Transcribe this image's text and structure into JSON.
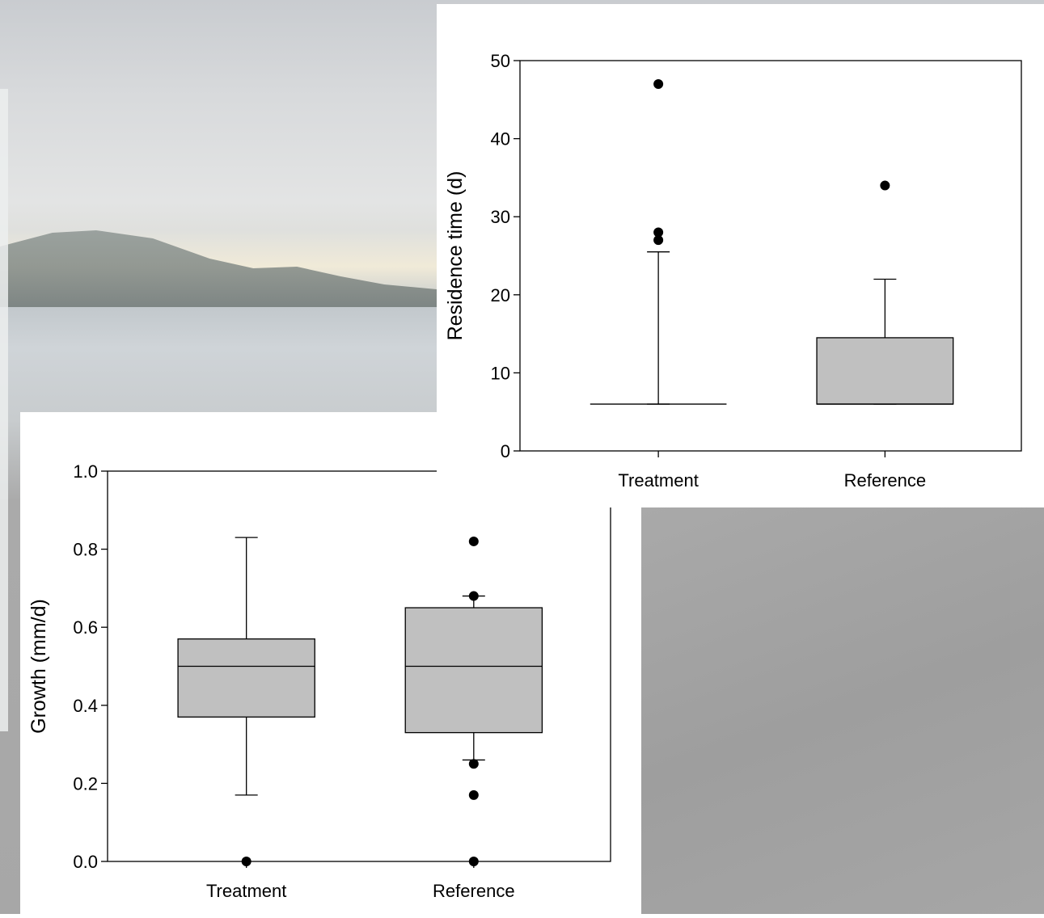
{
  "chart_data": [
    {
      "type": "box",
      "y_label": "Growth (mm/d)",
      "categories": [
        "Treatment",
        "Reference"
      ],
      "ylim": [
        0,
        1.0
      ],
      "yticks": [
        {
          "value": 0,
          "label": "0.0"
        },
        0.2,
        0.4,
        0.6,
        0.8,
        {
          "value": 1.0,
          "label": "1.0"
        }
      ],
      "color": "#c0c0c0",
      "boxes": [
        {
          "whisker_low": 0.17,
          "q1": 0.37,
          "median": 0.5,
          "q3": 0.57,
          "whisker_high": 0.83,
          "outliers": [
            0
          ]
        },
        {
          "whisker_low": 0.26,
          "q1": 0.33,
          "median": 0.5,
          "q3": 0.65,
          "whisker_high": 0.68,
          "outliers": [
            0.82,
            0.68,
            0.25,
            0.17,
            0
          ]
        }
      ]
    },
    {
      "type": "box",
      "y_label": "Residence time (d)",
      "categories": [
        "Treatment",
        "Reference"
      ],
      "ylim": [
        0,
        50
      ],
      "yticks": [
        0,
        10,
        20,
        30,
        40,
        50
      ],
      "color": "#c0c0c0",
      "boxes": [
        {
          "whisker_low": 6,
          "q1": 6,
          "median": 6,
          "q3": 6,
          "whisker_high": 25.5,
          "outliers": [
            27,
            28,
            47
          ]
        },
        {
          "whisker_low": 6,
          "q1": 6,
          "median": 6,
          "q3": 14.5,
          "whisker_high": 22,
          "outliers": [
            34
          ]
        }
      ]
    }
  ]
}
